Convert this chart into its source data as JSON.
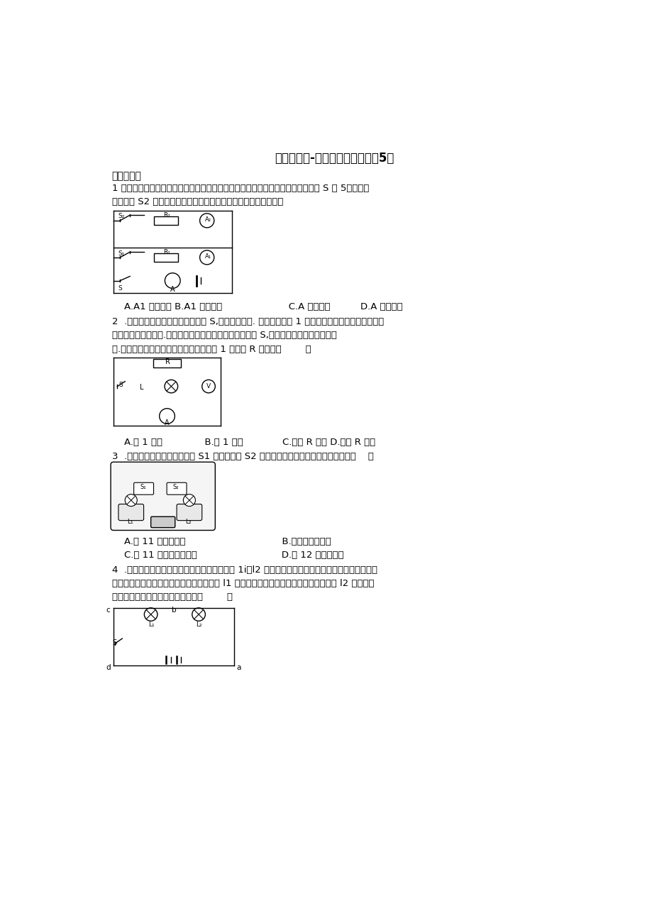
{
  "title": "基础训练卷-电路的分析与应用（5）",
  "section1": "一、单选题",
  "q1_text1": "1 小明在研究并联电路电流特点时，根据如图所示电路图连接好电路，并闭合开关 S 和 5。当他再",
  "q1_text2": "闭合开关 S2 时，电流表示数变化正确的是（电源电压不变）（）",
  "q1_options": "    A.A1 示数变大 B.A1 示数变小                      C.A 示数变大          D.A 示数变小",
  "q2_text1": "2  .在如图所示的电路中，闭合开关 S,电路正常工作. 一段时间后灯 1 熄灭，一个电表的示数变大，另",
  "q2_text2": "一个电表的示数变小.将两用电器位置互换后再次闭合开关 S,两个电表指针均发生明显偏",
  "q2_text3": "转.若电路中只有一处故障，且只发生在灯 1 或电阻 R 上，则（        ）",
  "q2_options": "    A.灯 1 短路              B.灯 1 断路             C.电阻 R 断路 D.电阻 R 短路",
  "q3_text1": "3  .如图所示的实物电路，开关 S1 闭合，开关 S2 由闭合到断开时，以下分析错误的是（    ）",
  "q3_options1": "    A.灯 11 亮度将变暗                                B.电路总功率变大",
  "q3_options2": "    C.灯 11 两端电压将变小                            D.灯 12 从熄灭到亮",
  "q4_text1": "4  .在如图所示的电路中，闭合开关后，发现灯 1i、l2 都不发光。为了找出发生故障的原因，现用一",
  "q4_text2": "电流表进行故障检测，发现：将电流表接在 l1 两端时，电流表没有示数；将电流表接在 l2 两端时，",
  "q4_text3": "电流表有示数，则电路故障可能是（        ）",
  "bg_color": "#ffffff",
  "text_color": "#000000",
  "font_size_title": 12,
  "font_size_body": 9.5,
  "font_size_section": 10
}
